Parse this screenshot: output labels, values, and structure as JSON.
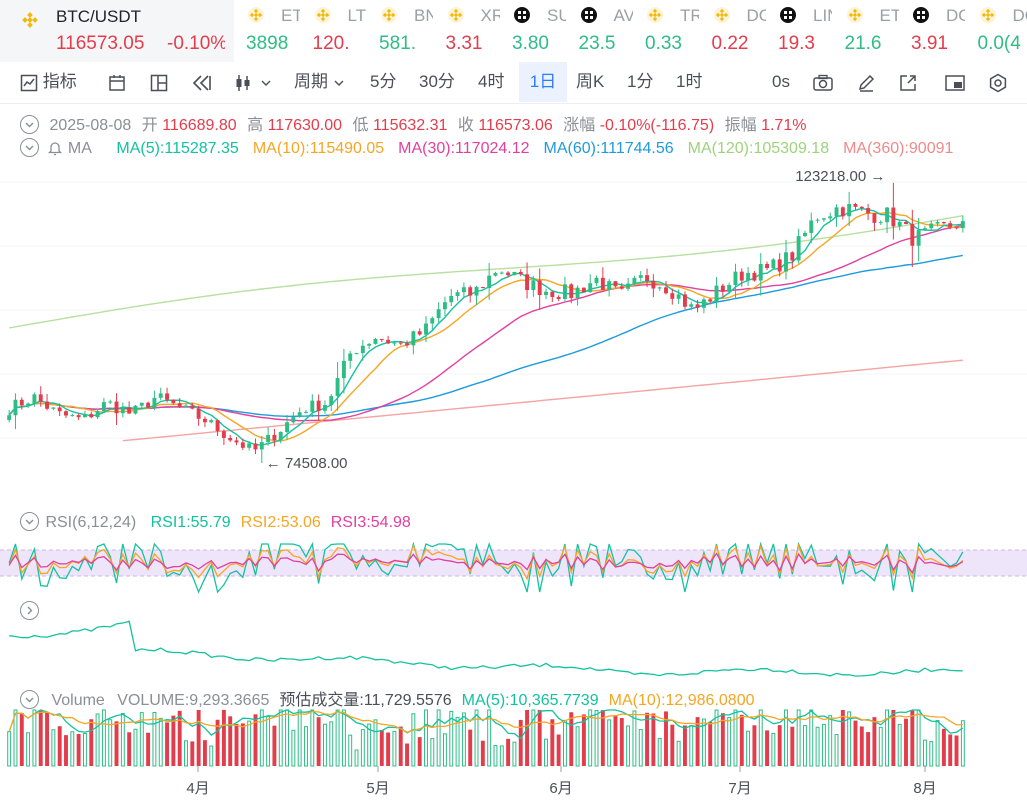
{
  "header": {
    "pair": "BTC/USDT",
    "price": "116573.05",
    "change": "-0.10%",
    "tickers": [
      {
        "symbol": "ETH/USDT",
        "price": "3898",
        "dir": "up",
        "icon": "binance-icon"
      },
      {
        "symbol": "LTC/USDT",
        "price": "120.",
        "dir": "dn",
        "icon": "binance-icon"
      },
      {
        "symbol": "BNB/USDT",
        "price": "581.",
        "dir": "up",
        "icon": "binance-icon"
      },
      {
        "symbol": "XRP/USDT",
        "price": "3.31",
        "dir": "dn",
        "icon": "binance-icon"
      },
      {
        "symbol": "SUI/USDT",
        "price": "3.80",
        "dir": "up",
        "icon": "grid-icon"
      },
      {
        "symbol": "AVAX/USDT",
        "price": "23.5",
        "dir": "up",
        "icon": "grid-icon"
      },
      {
        "symbol": "TRX/USDT",
        "price": "0.33",
        "dir": "up",
        "icon": "binance-icon"
      },
      {
        "symbol": "DOGE/USDT",
        "price": "0.22",
        "dir": "dn",
        "icon": "binance-icon"
      },
      {
        "symbol": "LINK/USDT",
        "price": "19.3",
        "dir": "dn",
        "icon": "grid-icon"
      },
      {
        "symbol": "ETC/USDT",
        "price": "21.6",
        "dir": "up",
        "icon": "binance-icon"
      },
      {
        "symbol": "DOT/USDT",
        "price": "3.91",
        "dir": "dn",
        "icon": "grid-icon"
      },
      {
        "symbol": "DOGS/USDT",
        "price": "0.0(4",
        "dir": "up",
        "icon": "binance-icon"
      }
    ]
  },
  "toolbar": {
    "indicators": "指标",
    "period": "周期",
    "intervals": [
      "5分",
      "30分",
      "4时",
      "1日",
      "周K",
      "1分",
      "1时"
    ],
    "active_interval": "1日",
    "countdown": "0s"
  },
  "ohlc": {
    "date": "2025-08-08",
    "open_label": "开",
    "open": "116689.80",
    "high_label": "高",
    "high": "117630.00",
    "low_label": "低",
    "low": "115632.31",
    "close_label": "收",
    "close": "116573.06",
    "change_label": "涨幅",
    "change": "-0.10%(-116.75)",
    "amplitude_label": "振幅",
    "amplitude": "1.71%"
  },
  "ma": {
    "label": "MA",
    "items": [
      {
        "text": "MA(5):115287.35",
        "color": "#14c2a0"
      },
      {
        "text": "MA(10):115490.05",
        "color": "#f5a623"
      },
      {
        "text": "MA(30):117024.12",
        "color": "#e040a0"
      },
      {
        "text": "MA(60):111744.56",
        "color": "#1e9bdc"
      },
      {
        "text": "MA(120):105309.18",
        "color": "#9ed37c"
      },
      {
        "text": "MA(360):90091",
        "color": "#f08a8a"
      }
    ]
  },
  "rsi": {
    "label": "RSI(6,12,24)",
    "items": [
      {
        "text": "RSI1:55.79",
        "color": "#14c2a0"
      },
      {
        "text": "RSI2:53.06",
        "color": "#f5a623"
      },
      {
        "text": "RSI3:54.98",
        "color": "#e040a0"
      }
    ]
  },
  "volume": {
    "label": "Volume",
    "items": [
      {
        "text": "VOLUME:9,293.3665",
        "color": "#8a8f96"
      },
      {
        "text": "预估成交量:11,729.5576",
        "color": "#4a4f57"
      },
      {
        "text": "MA(5):10,365.7739",
        "color": "#14c2a0"
      },
      {
        "text": "MA(10):12,986.0800",
        "color": "#f5a623"
      }
    ]
  },
  "chart_data": {
    "type": "candlestick",
    "title": "BTC/USDT 1日",
    "x_ticks": [
      "4月",
      "5月",
      "6月",
      "7月",
      "8月"
    ],
    "high_annotation": "123218.00",
    "low_annotation": "74508.00",
    "price_range": [
      74508.0,
      123218.0
    ],
    "rsi_overbought": 70,
    "rsi_oversold": 30,
    "colors": {
      "up": "#2ebd85",
      "down": "#e33d4c",
      "rsi_band": "#efe5fb"
    },
    "candles_approx": {
      "days": 152,
      "anchors_close": [
        84000,
        86000,
        83000,
        82000,
        85000,
        83000,
        86000,
        84000,
        82000,
        79000,
        76500,
        80000,
        84000,
        85000,
        94000,
        96500,
        95000,
        97500,
        103500,
        104000,
        108500,
        106000,
        104500,
        104000,
        106500,
        103500,
        107000,
        105000,
        101000,
        104500,
        107500,
        108000,
        110500,
        117500,
        119000,
        118000,
        117500,
        113500,
        115000,
        116573
      ]
    }
  }
}
